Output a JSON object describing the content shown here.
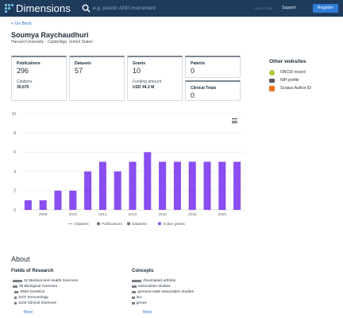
{
  "header": {
    "logo_text": "Dimensions",
    "search_placeholder": "e.g. plastic AND instrument",
    "faint_link": "New Portal",
    "support_label": "Support",
    "register_label": "Register"
  },
  "back_link": "< Go Back",
  "person": {
    "name": "Soumya Raychaudhuri",
    "affiliation": "Harvard University - Cambridge, United States"
  },
  "metrics": {
    "publications": {
      "label": "Publications",
      "value": "296",
      "citations_label": "Citations",
      "citations_value": "39,675"
    },
    "datasets": {
      "label": "Datasets",
      "value": "57"
    },
    "grants": {
      "label": "Grants",
      "value": "10",
      "funding_label": "Funding amount",
      "funding_value": "USD 44.3 M"
    },
    "patents": {
      "label": "Patents",
      "value": "0"
    },
    "clinical_trials": {
      "label": "Clinical Trials",
      "value": "0"
    }
  },
  "other_websites": {
    "title": "Other websites",
    "items": [
      {
        "label": "ORCID record",
        "icon": "orcid-icon",
        "color": "#a6ce39"
      },
      {
        "label": "NIH profile",
        "icon": "nih-icon",
        "color": "#555555"
      },
      {
        "label": "Scopus Author ID",
        "icon": "scopus-icon",
        "color": "#e9711c"
      }
    ]
  },
  "chart_data": {
    "type": "bar",
    "x": [
      2007,
      2008,
      2009,
      2010,
      2011,
      2012,
      2013,
      2014,
      2015,
      2016,
      2017,
      2018,
      2019,
      2020,
      2021
    ],
    "tick_labels": [
      "2008",
      "2010",
      "2012",
      "2014",
      "2016",
      "2018",
      "2020"
    ],
    "series": [
      {
        "name": "Active grants",
        "values": [
          1,
          1,
          2,
          2,
          4,
          5,
          4,
          5,
          6,
          5,
          5,
          5,
          5,
          5,
          5
        ],
        "color": "#8a4df0"
      }
    ],
    "legend": [
      "Citations",
      "Publications",
      "Datasets",
      "Active grants"
    ],
    "legend_colors": [
      "#9aa0a6",
      "#6b7177",
      "#6b7177",
      "#8a4df0"
    ],
    "legend_placement": "bottom",
    "ylim": [
      0,
      10
    ],
    "yticks": [
      "0",
      "2",
      "4",
      "6",
      "8",
      "10"
    ],
    "grid": true
  },
  "about": {
    "title": "About",
    "fields_title": "Fields of Research",
    "fields": [
      {
        "label": "11 Medical and Health Sciences",
        "bar": 1.0,
        "indent": 0
      },
      {
        "label": "06 Biological Sciences",
        "bar": 0.5,
        "indent": 0
      },
      {
        "label": "0604 Genetics",
        "bar": 0.45,
        "indent": 1
      },
      {
        "label": "1107 Immunology",
        "bar": 0.25,
        "indent": 1
      },
      {
        "label": "1103 Clinical Sciences",
        "bar": 0.2,
        "indent": 1
      }
    ],
    "fields_more": "More",
    "concepts_title": "Concepts",
    "concepts": [
      {
        "label": "rheumatoid arthritis",
        "bar": 1.0
      },
      {
        "label": "association studies",
        "bar": 0.5
      },
      {
        "label": "genome-wide association studies",
        "bar": 0.45
      },
      {
        "label": "loci",
        "bar": 0.3
      },
      {
        "label": "genes",
        "bar": 0.3
      }
    ],
    "concepts_more": "More"
  }
}
